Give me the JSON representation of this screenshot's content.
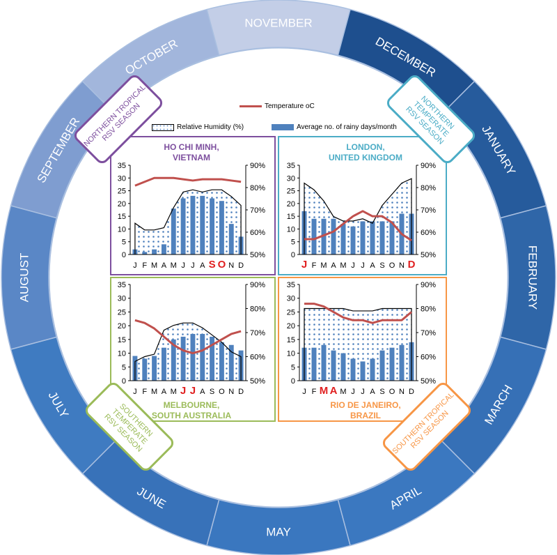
{
  "months": [
    "NOVEMBER",
    "DECEMBER",
    "JANUARY",
    "FEBRUARY",
    "MARCH",
    "APRIL",
    "MAY",
    "JUNE",
    "JULY",
    "AUGUST",
    "SEPTEMBER",
    "OCTOBER"
  ],
  "month_colors": [
    "#c3cee7",
    "#1e4f8e",
    "#265b9c",
    "#2f66a8",
    "#3670b6",
    "#3b78c0",
    "#3a77bf",
    "#3872b9",
    "#3f7bc1",
    "#5a87c6",
    "#7f9dd0",
    "#a2b6dc"
  ],
  "season_labels": {
    "northern_tropical": {
      "line1": "NORTHERN TROPICAL",
      "line2": "RSV SEASON",
      "color": "#7d4f9e"
    },
    "northern_temperate": {
      "line1": "NORTHERN TEMPERATE",
      "line2": "RSV SEASON",
      "color": "#4bacc6"
    },
    "southern_temperate": {
      "line1": "SOUTHERN TEMPERATE",
      "line2": "RSV SEASON",
      "color": "#9bbb59"
    },
    "southern_tropical": {
      "line1": "SOUTHERN TROPICAL",
      "line2": "RSV SEASON",
      "color": "#f79646"
    }
  },
  "legend": {
    "temperature": "Temperature oC",
    "humidity": "Relative Humidity (%)",
    "rainy_days": "Average no. of rainy days/month"
  },
  "colors": {
    "temperature": "#c0504d",
    "rainy_bars": "#4f81bd",
    "humidity_dots": "#4f81bd",
    "season_highlight": "#e02020"
  },
  "chart_data": [
    {
      "type": "bar",
      "title_line1": "HO CHI MINH,",
      "title_line2": "VIETNAM",
      "title_color": "#7d4f9e",
      "categories": [
        "J",
        "F",
        "M",
        "A",
        "M",
        "J",
        "J",
        "A",
        "S",
        "O",
        "N",
        "D"
      ],
      "highlighted_months": [
        8,
        9
      ],
      "ylim_left": [
        0,
        35
      ],
      "yticks_left": [
        "0",
        "5",
        "10",
        "15",
        "20",
        "25",
        "30",
        "35"
      ],
      "ylim_right": [
        50,
        90
      ],
      "yticks_right": [
        "50%",
        "60%",
        "70%",
        "80%",
        "90%"
      ],
      "series": [
        {
          "name": "Average no. of rainy days/month",
          "type": "bar",
          "axis": "left",
          "values": [
            2,
            1,
            2,
            4,
            18,
            22,
            23,
            23,
            22,
            21,
            12,
            7
          ]
        },
        {
          "name": "Temperature oC",
          "type": "line",
          "axis": "left",
          "values": [
            27,
            28.5,
            30,
            30,
            30,
            29.5,
            29,
            29.5,
            29.5,
            29.5,
            29,
            28.5
          ]
        },
        {
          "name": "Relative Humidity (%)",
          "type": "area",
          "axis": "right",
          "values": [
            64,
            61,
            61,
            62,
            71,
            78,
            79,
            78,
            79,
            79,
            76,
            72
          ]
        }
      ]
    },
    {
      "type": "bar",
      "title_line1": "LONDON,",
      "title_line2": "UNITED KINGDOM",
      "title_color": "#4bacc6",
      "categories": [
        "J",
        "F",
        "M",
        "A",
        "M",
        "J",
        "J",
        "A",
        "S",
        "O",
        "N",
        "D"
      ],
      "highlighted_months": [
        0,
        11
      ],
      "ylim_left": [
        0,
        35
      ],
      "yticks_left": [
        "0",
        "5",
        "10",
        "15",
        "20",
        "25",
        "30",
        "35"
      ],
      "ylim_right": [
        50,
        90
      ],
      "yticks_right": [
        "50%",
        "60%",
        "70%",
        "80%",
        "90%"
      ],
      "series": [
        {
          "name": "Average no. of rainy days/month",
          "type": "bar",
          "axis": "left",
          "values": [
            17,
            14,
            14,
            14,
            12,
            11,
            13,
            13,
            13,
            13,
            16,
            16
          ]
        },
        {
          "name": "Temperature oC",
          "type": "line",
          "axis": "left",
          "values": [
            6,
            6,
            7.5,
            9,
            12,
            15,
            17,
            15,
            15,
            12.5,
            8,
            5.5
          ]
        },
        {
          "name": "Relative Humidity (%)",
          "type": "area",
          "axis": "right",
          "values": [
            82,
            79,
            74,
            67,
            65,
            65,
            66,
            64,
            72,
            77,
            82,
            84
          ]
        }
      ]
    },
    {
      "type": "bar",
      "title_line1": "MELBOURNE,",
      "title_line2": "SOUTH AUSTRALIA",
      "title_color": "#9bbb59",
      "categories": [
        "J",
        "F",
        "M",
        "A",
        "M",
        "J",
        "J",
        "A",
        "S",
        "O",
        "N",
        "D"
      ],
      "highlighted_months": [
        5,
        6
      ],
      "ylim_left": [
        0,
        35
      ],
      "yticks_left": [
        "0",
        "5",
        "10",
        "15",
        "20",
        "25",
        "30",
        "35"
      ],
      "ylim_right": [
        50,
        90
      ],
      "yticks_right": [
        "50%",
        "60%",
        "70%",
        "80%",
        "90%"
      ],
      "series": [
        {
          "name": "Average no. of rainy days/month",
          "type": "bar",
          "axis": "left",
          "values": [
            9,
            8,
            9,
            12,
            15,
            16,
            17,
            17,
            16,
            14,
            13,
            11
          ]
        },
        {
          "name": "Temperature oC",
          "type": "line",
          "axis": "left",
          "values": [
            22,
            21,
            19,
            16,
            13,
            11,
            10,
            11,
            13,
            15,
            17,
            18
          ]
        },
        {
          "name": "Relative Humidity (%)",
          "type": "area",
          "axis": "right",
          "values": [
            58,
            60,
            61,
            71,
            73,
            74,
            74,
            72,
            69,
            66,
            62,
            60
          ]
        }
      ]
    },
    {
      "type": "bar",
      "title_line1": "RIO DE JANEIRO,",
      "title_line2": "BRAZIL",
      "title_color": "#f79646",
      "categories": [
        "J",
        "F",
        "M",
        "A",
        "M",
        "J",
        "J",
        "A",
        "S",
        "O",
        "N",
        "D"
      ],
      "highlighted_months": [
        2,
        3
      ],
      "ylim_left": [
        0,
        35
      ],
      "yticks_left": [
        "0",
        "5",
        "10",
        "15",
        "20",
        "25",
        "30",
        "35"
      ],
      "ylim_right": [
        50,
        90
      ],
      "yticks_right": [
        "50%",
        "60%",
        "70%",
        "80%",
        "90%"
      ],
      "series": [
        {
          "name": "Average no. of rainy days/month",
          "type": "bar",
          "axis": "left",
          "values": [
            12,
            12,
            13,
            11,
            10,
            8,
            7,
            8,
            11,
            12,
            13,
            14
          ]
        },
        {
          "name": "Temperature oC",
          "type": "line",
          "axis": "left",
          "values": [
            28,
            28,
            27,
            25,
            23,
            22,
            22,
            21,
            22,
            22,
            22,
            25
          ]
        },
        {
          "name": "Relative Humidity (%)",
          "type": "area",
          "axis": "right",
          "values": [
            80,
            80,
            80,
            80,
            80,
            79,
            79,
            79,
            80,
            80,
            80,
            80
          ]
        }
      ]
    }
  ]
}
